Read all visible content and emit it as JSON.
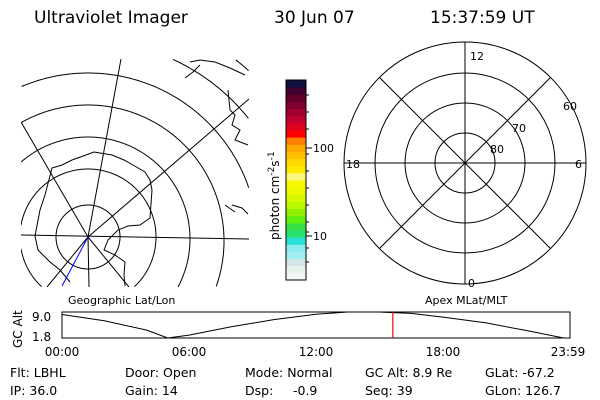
{
  "header": {
    "instrument": "Ultraviolet Imager",
    "date": "30 Jun 07",
    "time": "15:37:59 UT"
  },
  "colorbar": {
    "label": "photon cm",
    "label_sup1": "-2",
    "label_mid": "s",
    "label_sup2": "-1",
    "tick_labels": [
      "100",
      "10"
    ],
    "colors": [
      "#f4f8f4",
      "#e6f2ec",
      "#d4e6e6",
      "#a0eef2",
      "#8ceaf0",
      "#28e0d8",
      "#28e070",
      "#38e048",
      "#60f010",
      "#90f000",
      "#b8f800",
      "#d8f800",
      "#f0f800",
      "#f8f800",
      "#f8f880",
      "#ffe800",
      "#ffd800",
      "#ffc000",
      "#ffa800",
      "#ff8000",
      "#ff0000",
      "#e00020",
      "#c00030",
      "#a00030",
      "#800030",
      "#600028",
      "#400030",
      "#101040"
    ]
  },
  "left_panel": {
    "title": "Geographic Lat/Lon"
  },
  "right_panel": {
    "title": "Apex MLat/MLT",
    "mlt_labels": {
      "top": "12",
      "bottom": "0",
      "left": "18",
      "right": "6"
    },
    "mlat_labels": [
      "60",
      "70",
      "80"
    ]
  },
  "chart_data": {
    "type": "line",
    "ylabel": "GC Alt",
    "y_tick_labels": [
      "9.0",
      "1.8"
    ],
    "ylim": [
      1.8,
      9.0
    ],
    "x_tick_labels": [
      "00:00",
      "06:00",
      "12:00",
      "18:00",
      "23:59"
    ],
    "xlim_hours": [
      0,
      24
    ],
    "x": [
      0,
      2,
      4,
      5.0,
      6,
      8,
      10,
      12,
      13.5,
      15,
      16.5,
      18,
      20,
      22,
      23.7,
      24
    ],
    "y": [
      8.3,
      6.6,
      4.0,
      1.8,
      2.6,
      4.9,
      6.9,
      8.4,
      9.0,
      9.0,
      8.6,
      7.6,
      6.0,
      3.8,
      1.8,
      1.8
    ],
    "current_time_marker_hours": 15.63,
    "marker_color": "#ff0000"
  },
  "info": {
    "filter": "Flt: LBHL",
    "door": "Door: Open",
    "mode": "Mode: Normal",
    "gc_alt": "GC Alt: 8.9 Re",
    "glat": "GLat: -67.2",
    "ip": "IP: 36.0",
    "gain": "Gain: 14",
    "dsp_label": "Dsp:",
    "dsp_value": "-0.9",
    "seq": "Seq: 39",
    "glon": "GLon: 126.7"
  }
}
